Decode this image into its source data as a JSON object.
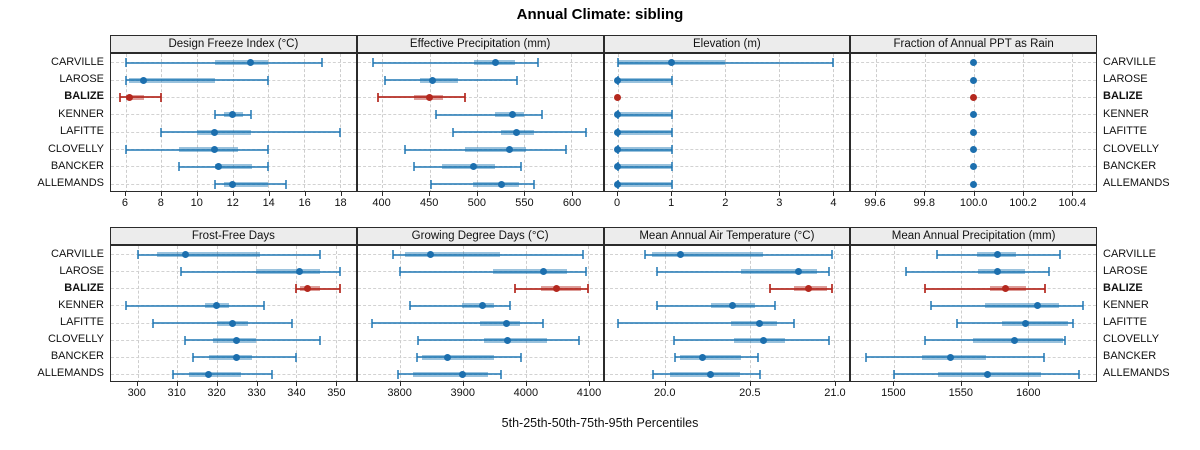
{
  "title": "Annual Climate: sibling",
  "caption": "5th-25th-50th-75th-95th Percentiles",
  "locations": [
    "CARVILLE",
    "LAROSE",
    "BALIZE",
    "KENNER",
    "LAFITTE",
    "CLOVELLY",
    "BANCKER",
    "ALLEMANDS"
  ],
  "highlight_location": "BALIZE",
  "colors": {
    "normal_dot": "#1c6fae",
    "normal_whisker": "rgba(31,119,180,0.75)",
    "normal_box": "rgba(31,119,180,0.45)",
    "highlight_dot": "#b4281e",
    "highlight_whisker": "rgba(180,40,30,0.85)",
    "highlight_box": "rgba(180,40,30,0.45)",
    "strip_bg": "#ececec",
    "panel_border": "#2b2b2b",
    "grid": "#cdcdcd"
  },
  "chart_data": {
    "type": "trellis-percentile-dotplot",
    "percentiles_shown": [
      5,
      25,
      50,
      75,
      95
    ],
    "panels": [
      {
        "title": "Design Freeze Index (°C)",
        "xmin": 5.17,
        "xmax": 18.9,
        "ticks": [
          6,
          8,
          10,
          12,
          14,
          16,
          18
        ],
        "tick_labels": [
          "6",
          "8",
          "10",
          "12",
          "14",
          "16",
          "18"
        ],
        "values": {
          "CARVILLE": [
            6,
            11,
            13,
            14,
            17
          ],
          "LAROSE": [
            6,
            6.2,
            7,
            11,
            14
          ],
          "BALIZE": [
            5.7,
            6,
            6.2,
            7,
            8
          ],
          "KENNER": [
            11,
            11.5,
            12,
            12.6,
            13
          ],
          "LAFITTE": [
            8,
            10,
            11,
            13,
            18
          ],
          "CLOVELLY": [
            6,
            9,
            11,
            12.3,
            14
          ],
          "BANCKER": [
            9,
            11,
            11.2,
            13.1,
            14
          ],
          "ALLEMANDS": [
            11,
            11.5,
            12,
            14,
            15
          ]
        }
      },
      {
        "title": "Effective Precipitation (mm)",
        "xmin": 374,
        "xmax": 633,
        "ticks": [
          400,
          450,
          500,
          550,
          600
        ],
        "tick_labels": [
          "400",
          "450",
          "500",
          "550",
          "600"
        ],
        "values": {
          "CARVILLE": [
            390,
            497,
            520,
            540,
            565
          ],
          "LAROSE": [
            403,
            440,
            453,
            480,
            543
          ],
          "BALIZE": [
            395,
            434,
            450,
            464,
            487
          ],
          "KENNER": [
            457,
            519,
            538,
            550,
            569
          ],
          "LAFITTE": [
            475,
            526,
            542,
            560,
            616
          ],
          "CLOVELLY": [
            424,
            487,
            535,
            552,
            594
          ],
          "BANCKER": [
            433,
            463,
            496,
            519,
            547
          ],
          "ALLEMANDS": [
            451,
            496,
            526,
            545,
            560
          ]
        }
      },
      {
        "title": "Elevation (m)",
        "xmin": -0.25,
        "xmax": 4.31,
        "ticks": [
          0,
          1,
          2,
          3,
          4
        ],
        "tick_labels": [
          "0",
          "1",
          "2",
          "3",
          "4"
        ],
        "values": {
          "CARVILLE": [
            0,
            0,
            1,
            2,
            4
          ],
          "LAROSE": [
            0,
            0,
            0,
            1,
            1
          ],
          "BALIZE": [
            0,
            0,
            0,
            0,
            0
          ],
          "KENNER": [
            0,
            0,
            0,
            1,
            1
          ],
          "LAFITTE": [
            0,
            0,
            0,
            1,
            1
          ],
          "CLOVELLY": [
            0,
            0,
            0,
            1,
            1
          ],
          "BANCKER": [
            0,
            0,
            0,
            1,
            1
          ],
          "ALLEMANDS": [
            0,
            0,
            0,
            1,
            1
          ]
        }
      },
      {
        "title": "Fraction of Annual PPT as Rain",
        "xmin": 99.5,
        "xmax": 100.5,
        "ticks": [
          99.6,
          99.8,
          100.0,
          100.2,
          100.4
        ],
        "tick_labels": [
          "99.6",
          "99.8",
          "100.0",
          "100.2",
          "100.4"
        ],
        "values": {
          "CARVILLE": [
            100,
            100,
            100,
            100,
            100
          ],
          "LAROSE": [
            100,
            100,
            100,
            100,
            100
          ],
          "BALIZE": [
            100,
            100,
            100,
            100,
            100
          ],
          "KENNER": [
            100,
            100,
            100,
            100,
            100
          ],
          "LAFITTE": [
            100,
            100,
            100,
            100,
            100
          ],
          "CLOVELLY": [
            100,
            100,
            100,
            100,
            100
          ],
          "BANCKER": [
            100,
            100,
            100,
            100,
            100
          ],
          "ALLEMANDS": [
            100,
            100,
            100,
            100,
            100
          ]
        }
      },
      {
        "title": "Frost-Free Days",
        "xmin": 293.3,
        "xmax": 355.1,
        "ticks": [
          300,
          310,
          320,
          330,
          340,
          350
        ],
        "tick_labels": [
          "300",
          "310",
          "320",
          "330",
          "340",
          "350"
        ],
        "values": {
          "CARVILLE": [
            300,
            305,
            312,
            331,
            346
          ],
          "LAROSE": [
            311,
            330,
            341,
            346,
            351
          ],
          "BALIZE": [
            340,
            341,
            343,
            346,
            351
          ],
          "KENNER": [
            297,
            317,
            320,
            323,
            332
          ],
          "LAFITTE": [
            304,
            320,
            324,
            328,
            339
          ],
          "CLOVELLY": [
            312,
            319,
            325,
            330,
            346
          ],
          "BANCKER": [
            314,
            318,
            325,
            329,
            340
          ],
          "ALLEMANDS": [
            309,
            313,
            318,
            326,
            334
          ]
        }
      },
      {
        "title": "Growing Degree Days (°C)",
        "xmin": 3732,
        "xmax": 4123,
        "ticks": [
          3800,
          3900,
          4000,
          4100
        ],
        "tick_labels": [
          "3800",
          "3900",
          "4000",
          "4100"
        ],
        "values": {
          "CARVILLE": [
            3788,
            3808,
            3849,
            3960,
            4092
          ],
          "LAROSE": [
            3799,
            3948,
            4029,
            4067,
            4096
          ],
          "BALIZE": [
            3984,
            4024,
            4050,
            4088,
            4100
          ],
          "KENNER": [
            3815,
            3898,
            3931,
            3950,
            3976
          ],
          "LAFITTE": [
            3755,
            3928,
            3970,
            3991,
            4028
          ],
          "CLOVELLY": [
            3829,
            3933,
            3972,
            4035,
            4085
          ],
          "BANCKER": [
            3826,
            3834,
            3876,
            3949,
            3993
          ],
          "ALLEMANDS": [
            3797,
            3820,
            3899,
            3940,
            3961
          ]
        }
      },
      {
        "title": "Mean Annual Air Temperature (°C)",
        "xmin": 19.64,
        "xmax": 21.09,
        "ticks": [
          20.0,
          20.5,
          21.0
        ],
        "tick_labels": [
          "20.0",
          "20.5",
          "21.0"
        ],
        "values": {
          "CARVILLE": [
            19.88,
            19.92,
            20.09,
            20.58,
            20.99
          ],
          "LAROSE": [
            19.95,
            20.45,
            20.79,
            20.9,
            20.97
          ],
          "BALIZE": [
            20.62,
            20.76,
            20.85,
            20.96,
            20.99
          ],
          "KENNER": [
            19.95,
            20.27,
            20.4,
            20.53,
            20.65
          ],
          "LAFITTE": [
            19.72,
            20.39,
            20.56,
            20.66,
            20.76
          ],
          "CLOVELLY": [
            20.05,
            20.41,
            20.58,
            20.71,
            20.97
          ],
          "BANCKER": [
            20.06,
            20.09,
            20.22,
            20.45,
            20.55
          ],
          "ALLEMANDS": [
            19.93,
            20.03,
            20.27,
            20.44,
            20.56
          ]
        }
      },
      {
        "title": "Mean Annual Precipitation (mm)",
        "xmin": 1468,
        "xmax": 1651,
        "ticks": [
          1500,
          1550,
          1600
        ],
        "tick_labels": [
          "1500",
          "1550",
          "1600"
        ],
        "values": {
          "CARVILLE": [
            1532,
            1562,
            1577,
            1591,
            1624
          ],
          "LAROSE": [
            1509,
            1563,
            1577,
            1598,
            1616
          ],
          "BALIZE": [
            1523,
            1572,
            1583,
            1599,
            1613
          ],
          "KENNER": [
            1528,
            1568,
            1607,
            1623,
            1641
          ],
          "LAFITTE": [
            1547,
            1581,
            1598,
            1630,
            1634
          ],
          "CLOVELLY": [
            1523,
            1559,
            1590,
            1626,
            1628
          ],
          "BANCKER": [
            1479,
            1521,
            1542,
            1569,
            1612
          ],
          "ALLEMANDS": [
            1500,
            1533,
            1570,
            1610,
            1638
          ]
        }
      }
    ]
  }
}
